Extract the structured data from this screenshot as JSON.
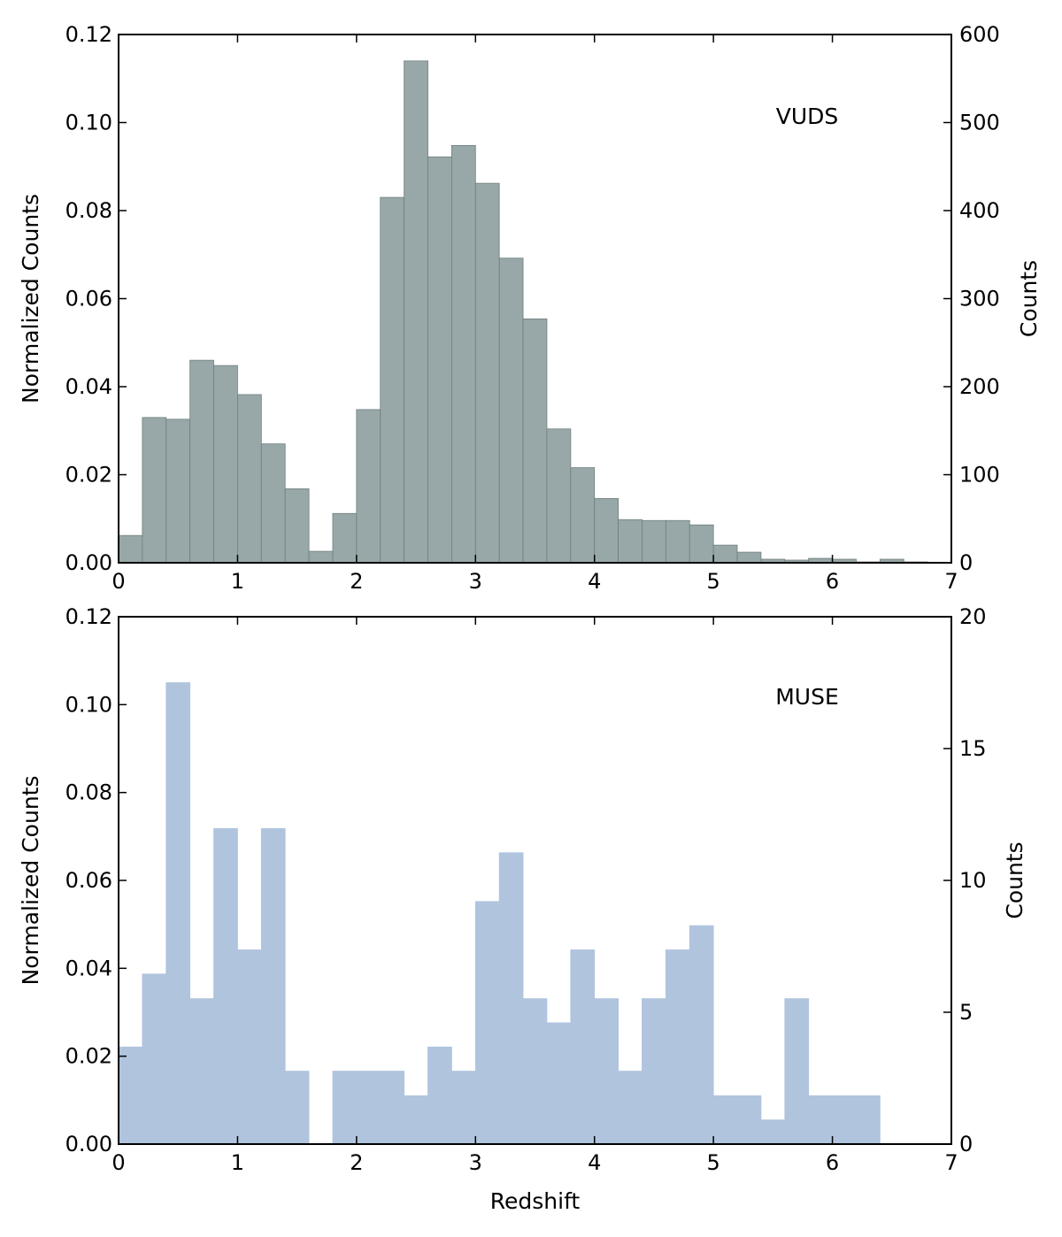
{
  "chart_data": [
    {
      "type": "bar",
      "panel": "top",
      "annotation": "VUDS",
      "xlabel": "",
      "ylabel_left": "Normalized Counts",
      "ylabel_right": "Counts",
      "xlim": [
        0,
        7
      ],
      "ylim_left": [
        0,
        0.12
      ],
      "ylim_right": [
        0,
        600
      ],
      "x_ticks": [
        "0",
        "1",
        "2",
        "3",
        "4",
        "5",
        "6",
        "7"
      ],
      "y_ticks_left": [
        "0.00",
        "0.02",
        "0.04",
        "0.06",
        "0.08",
        "0.10",
        "0.12"
      ],
      "y_ticks_right": [
        "0",
        "100",
        "200",
        "300",
        "400",
        "500",
        "600"
      ],
      "bin_width": 0.2,
      "bin_starts": [
        0.0,
        0.2,
        0.4,
        0.6,
        0.8,
        1.0,
        1.2,
        1.4,
        1.6,
        1.8,
        2.0,
        2.2,
        2.4,
        2.6,
        2.8,
        3.0,
        3.2,
        3.4,
        3.6,
        3.8,
        4.0,
        4.2,
        4.4,
        4.6,
        4.8,
        5.0,
        5.2,
        5.4,
        5.6,
        5.8,
        6.0,
        6.2,
        6.4,
        6.6,
        6.8
      ],
      "values": [
        0.0062,
        0.033,
        0.0326,
        0.046,
        0.0448,
        0.0382,
        0.027,
        0.0168,
        0.0026,
        0.0112,
        0.0348,
        0.083,
        0.114,
        0.0922,
        0.0948,
        0.0862,
        0.0692,
        0.0554,
        0.0304,
        0.0216,
        0.0146,
        0.0098,
        0.0096,
        0.0096,
        0.0086,
        0.004,
        0.0024,
        0.0008,
        0.0006,
        0.001,
        0.0008,
        0.0002,
        0.0008,
        0.0002,
        0.0
      ],
      "bar_color": "#98a8a8",
      "edge_color": "#6f7d7d"
    },
    {
      "type": "bar",
      "panel": "bottom",
      "annotation": "MUSE",
      "xlabel": "Redshift",
      "ylabel_left": "Normalized Counts",
      "ylabel_right": "Counts",
      "xlim": [
        0,
        7
      ],
      "ylim_left": [
        0,
        0.12
      ],
      "ylim_right": [
        0,
        20
      ],
      "x_ticks": [
        "0",
        "1",
        "2",
        "3",
        "4",
        "5",
        "6",
        "7"
      ],
      "y_ticks_left": [
        "0.00",
        "0.02",
        "0.04",
        "0.06",
        "0.08",
        "0.10",
        "0.12"
      ],
      "y_ticks_right": [
        "0",
        "5",
        "10",
        "15",
        "20"
      ],
      "bin_width": 0.2,
      "bin_starts": [
        0.0,
        0.2,
        0.4,
        0.6,
        0.8,
        1.0,
        1.2,
        1.4,
        1.6,
        1.8,
        2.0,
        2.2,
        2.4,
        2.6,
        2.8,
        3.0,
        3.2,
        3.4,
        3.6,
        3.8,
        4.0,
        4.2,
        4.4,
        4.6,
        4.8,
        5.0,
        5.2,
        5.4,
        5.6,
        5.8,
        6.0,
        6.2,
        6.4
      ],
      "values": [
        0.0221,
        0.0387,
        0.105,
        0.0331,
        0.0718,
        0.0442,
        0.0718,
        0.0166,
        0.0,
        0.0166,
        0.0166,
        0.0166,
        0.011,
        0.0221,
        0.0166,
        0.0552,
        0.0663,
        0.0331,
        0.0276,
        0.0442,
        0.0331,
        0.0166,
        0.0331,
        0.0442,
        0.0497,
        0.011,
        0.011,
        0.0055,
        0.0331,
        0.011,
        0.011,
        0.011,
        0.0
      ],
      "bar_color": "#b0c4de",
      "edge_color": "#b0c4de"
    }
  ]
}
